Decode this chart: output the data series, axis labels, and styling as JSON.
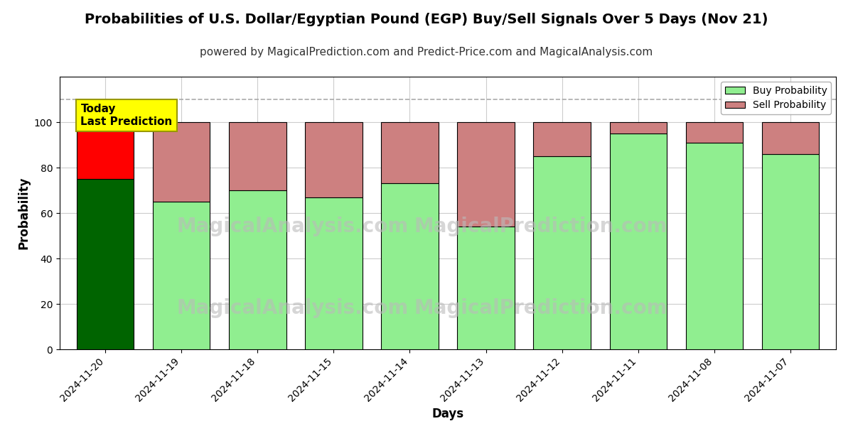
{
  "title": "Probabilities of U.S. Dollar/Egyptian Pound (EGP) Buy/Sell Signals Over 5 Days (Nov 21)",
  "subtitle": "powered by MagicalPrediction.com and Predict-Price.com and MagicalAnalysis.com",
  "xlabel": "Days",
  "ylabel": "Probability",
  "dates": [
    "2024-11-20",
    "2024-11-19",
    "2024-11-18",
    "2024-11-15",
    "2024-11-14",
    "2024-11-13",
    "2024-11-12",
    "2024-11-11",
    "2024-11-08",
    "2024-11-07"
  ],
  "buy_values": [
    75,
    65,
    70,
    67,
    73,
    54,
    85,
    95,
    91,
    86
  ],
  "sell_values": [
    25,
    35,
    30,
    33,
    27,
    46,
    15,
    5,
    9,
    14
  ],
  "today_bar_buy_color": "#006400",
  "today_bar_sell_color": "#ff0000",
  "regular_bar_buy_color": "#90EE90",
  "regular_bar_sell_color": "#cd8080",
  "today_annotation_bg": "#ffff00",
  "today_annotation_text": "Today\nLast Prediction",
  "ylim": [
    0,
    120
  ],
  "yticks": [
    0,
    20,
    40,
    60,
    80,
    100
  ],
  "dashed_line_y": 110,
  "dashed_line_color": "#aaaaaa",
  "legend_buy_color": "#90EE90",
  "legend_sell_color": "#cd8080",
  "watermark_color": "#bbbbbb",
  "background_color": "#ffffff",
  "grid_color": "#cccccc",
  "title_fontsize": 14,
  "subtitle_fontsize": 11,
  "label_fontsize": 12,
  "tick_fontsize": 10,
  "bar_width": 0.75
}
